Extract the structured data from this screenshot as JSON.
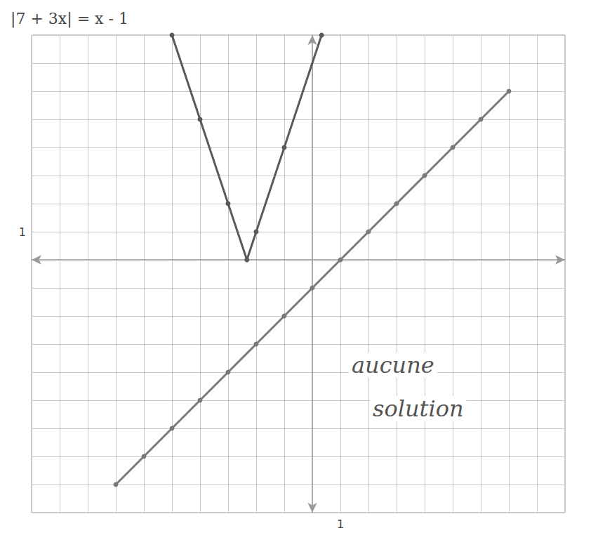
{
  "chart_data": {
    "type": "line",
    "title": "|7 + 3x| = x - 1",
    "annotations": [
      "aucune solution"
    ],
    "xlim": [
      -10,
      9
    ],
    "ylim": [
      -9,
      8
    ],
    "xticks": [
      1
    ],
    "yticks": [
      1
    ],
    "grid": true,
    "series": [
      {
        "color": "#5a5a5a",
        "marker": "circle",
        "line_style": "solid",
        "x": [
          -5,
          -4,
          -3,
          -2.33,
          -2,
          -1,
          0.33
        ],
        "values": [
          8,
          5,
          2,
          0,
          1,
          4,
          8
        ]
      },
      {
        "color": "#7a7a7a",
        "marker": "circle",
        "line_style": "solid",
        "x": [
          -7,
          -6,
          -5,
          -4,
          -3,
          -2,
          -1,
          0,
          1,
          2,
          3,
          4,
          5,
          6,
          7
        ],
        "values": [
          -8,
          -7,
          -6,
          -5,
          -4,
          -3,
          -2,
          -1,
          0,
          1,
          2,
          3,
          4,
          5,
          6
        ]
      }
    ]
  }
}
